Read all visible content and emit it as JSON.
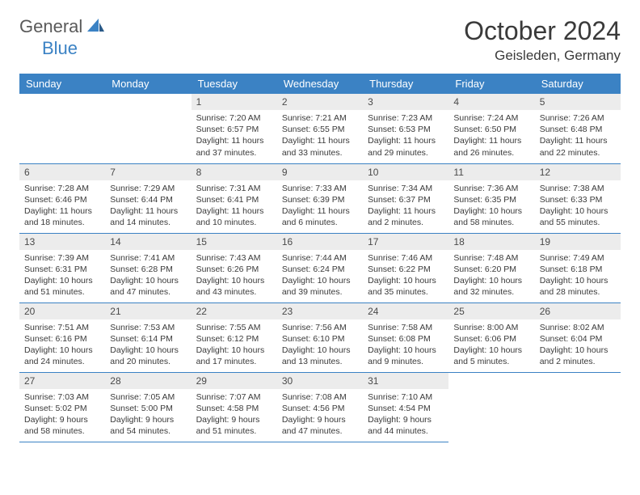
{
  "brand": {
    "part1": "General",
    "part2": "Blue"
  },
  "title": "October 2024",
  "location": "Geisleden, Germany",
  "colors": {
    "header_bg": "#3b82c4",
    "header_text": "#ffffff",
    "daynum_bg": "#ececec",
    "border": "#3b82c4",
    "text": "#3a3a3a"
  },
  "weekdays": [
    "Sunday",
    "Monday",
    "Tuesday",
    "Wednesday",
    "Thursday",
    "Friday",
    "Saturday"
  ],
  "first_weekday_index": 2,
  "days": [
    {
      "n": 1,
      "sr": "7:20 AM",
      "ss": "6:57 PM",
      "dl": "11 hours and 37 minutes."
    },
    {
      "n": 2,
      "sr": "7:21 AM",
      "ss": "6:55 PM",
      "dl": "11 hours and 33 minutes."
    },
    {
      "n": 3,
      "sr": "7:23 AM",
      "ss": "6:53 PM",
      "dl": "11 hours and 29 minutes."
    },
    {
      "n": 4,
      "sr": "7:24 AM",
      "ss": "6:50 PM",
      "dl": "11 hours and 26 minutes."
    },
    {
      "n": 5,
      "sr": "7:26 AM",
      "ss": "6:48 PM",
      "dl": "11 hours and 22 minutes."
    },
    {
      "n": 6,
      "sr": "7:28 AM",
      "ss": "6:46 PM",
      "dl": "11 hours and 18 minutes."
    },
    {
      "n": 7,
      "sr": "7:29 AM",
      "ss": "6:44 PM",
      "dl": "11 hours and 14 minutes."
    },
    {
      "n": 8,
      "sr": "7:31 AM",
      "ss": "6:41 PM",
      "dl": "11 hours and 10 minutes."
    },
    {
      "n": 9,
      "sr": "7:33 AM",
      "ss": "6:39 PM",
      "dl": "11 hours and 6 minutes."
    },
    {
      "n": 10,
      "sr": "7:34 AM",
      "ss": "6:37 PM",
      "dl": "11 hours and 2 minutes."
    },
    {
      "n": 11,
      "sr": "7:36 AM",
      "ss": "6:35 PM",
      "dl": "10 hours and 58 minutes."
    },
    {
      "n": 12,
      "sr": "7:38 AM",
      "ss": "6:33 PM",
      "dl": "10 hours and 55 minutes."
    },
    {
      "n": 13,
      "sr": "7:39 AM",
      "ss": "6:31 PM",
      "dl": "10 hours and 51 minutes."
    },
    {
      "n": 14,
      "sr": "7:41 AM",
      "ss": "6:28 PM",
      "dl": "10 hours and 47 minutes."
    },
    {
      "n": 15,
      "sr": "7:43 AM",
      "ss": "6:26 PM",
      "dl": "10 hours and 43 minutes."
    },
    {
      "n": 16,
      "sr": "7:44 AM",
      "ss": "6:24 PM",
      "dl": "10 hours and 39 minutes."
    },
    {
      "n": 17,
      "sr": "7:46 AM",
      "ss": "6:22 PM",
      "dl": "10 hours and 35 minutes."
    },
    {
      "n": 18,
      "sr": "7:48 AM",
      "ss": "6:20 PM",
      "dl": "10 hours and 32 minutes."
    },
    {
      "n": 19,
      "sr": "7:49 AM",
      "ss": "6:18 PM",
      "dl": "10 hours and 28 minutes."
    },
    {
      "n": 20,
      "sr": "7:51 AM",
      "ss": "6:16 PM",
      "dl": "10 hours and 24 minutes."
    },
    {
      "n": 21,
      "sr": "7:53 AM",
      "ss": "6:14 PM",
      "dl": "10 hours and 20 minutes."
    },
    {
      "n": 22,
      "sr": "7:55 AM",
      "ss": "6:12 PM",
      "dl": "10 hours and 17 minutes."
    },
    {
      "n": 23,
      "sr": "7:56 AM",
      "ss": "6:10 PM",
      "dl": "10 hours and 13 minutes."
    },
    {
      "n": 24,
      "sr": "7:58 AM",
      "ss": "6:08 PM",
      "dl": "10 hours and 9 minutes."
    },
    {
      "n": 25,
      "sr": "8:00 AM",
      "ss": "6:06 PM",
      "dl": "10 hours and 5 minutes."
    },
    {
      "n": 26,
      "sr": "8:02 AM",
      "ss": "6:04 PM",
      "dl": "10 hours and 2 minutes."
    },
    {
      "n": 27,
      "sr": "7:03 AM",
      "ss": "5:02 PM",
      "dl": "9 hours and 58 minutes."
    },
    {
      "n": 28,
      "sr": "7:05 AM",
      "ss": "5:00 PM",
      "dl": "9 hours and 54 minutes."
    },
    {
      "n": 29,
      "sr": "7:07 AM",
      "ss": "4:58 PM",
      "dl": "9 hours and 51 minutes."
    },
    {
      "n": 30,
      "sr": "7:08 AM",
      "ss": "4:56 PM",
      "dl": "9 hours and 47 minutes."
    },
    {
      "n": 31,
      "sr": "7:10 AM",
      "ss": "4:54 PM",
      "dl": "9 hours and 44 minutes."
    }
  ],
  "labels": {
    "sunrise": "Sunrise:",
    "sunset": "Sunset:",
    "daylight": "Daylight:"
  }
}
